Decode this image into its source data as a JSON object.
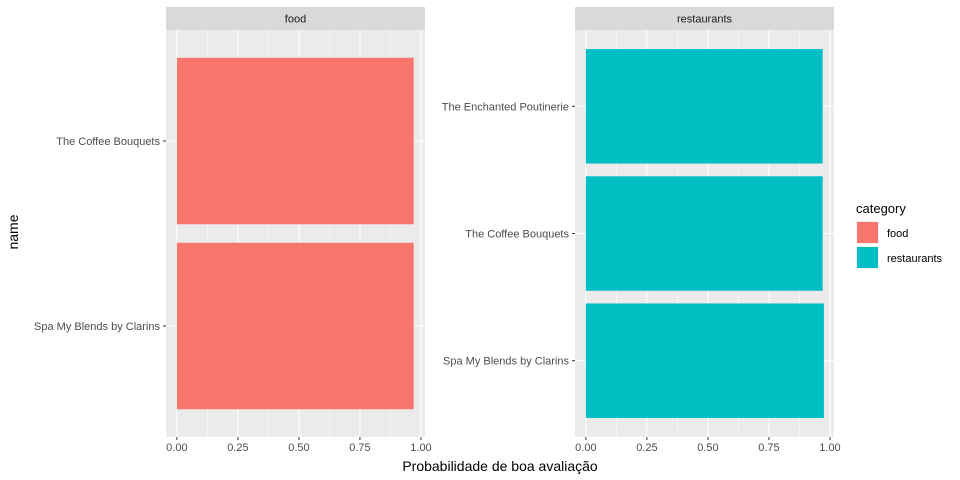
{
  "chart_data": {
    "type": "bar",
    "orientation": "horizontal",
    "xlabel": "Probabilidade de boa avaliação",
    "ylabel": "name",
    "xlim": [
      0,
      1
    ],
    "x_ticks": [
      "0.00",
      "0.25",
      "0.50",
      "0.75",
      "1.00"
    ],
    "grid": true,
    "legend": {
      "title": "category",
      "placement": "right",
      "entries": [
        {
          "label": "food",
          "color": "#F8766D"
        },
        {
          "label": "restaurants",
          "color": "#00BFC4"
        }
      ]
    },
    "panels": [
      {
        "strip": "food",
        "color": "#F8766D",
        "categories": [
          "The Coffee Bouquets",
          "Spa My Blends by Clarins"
        ],
        "values": [
          0.97,
          0.97
        ]
      },
      {
        "strip": "restaurants",
        "color": "#00BFC4",
        "categories": [
          "The Enchanted Poutinerie",
          "The Coffee Bouquets",
          "Spa My Blends by Clarins"
        ],
        "values": [
          0.97,
          0.97,
          0.975
        ]
      }
    ]
  }
}
